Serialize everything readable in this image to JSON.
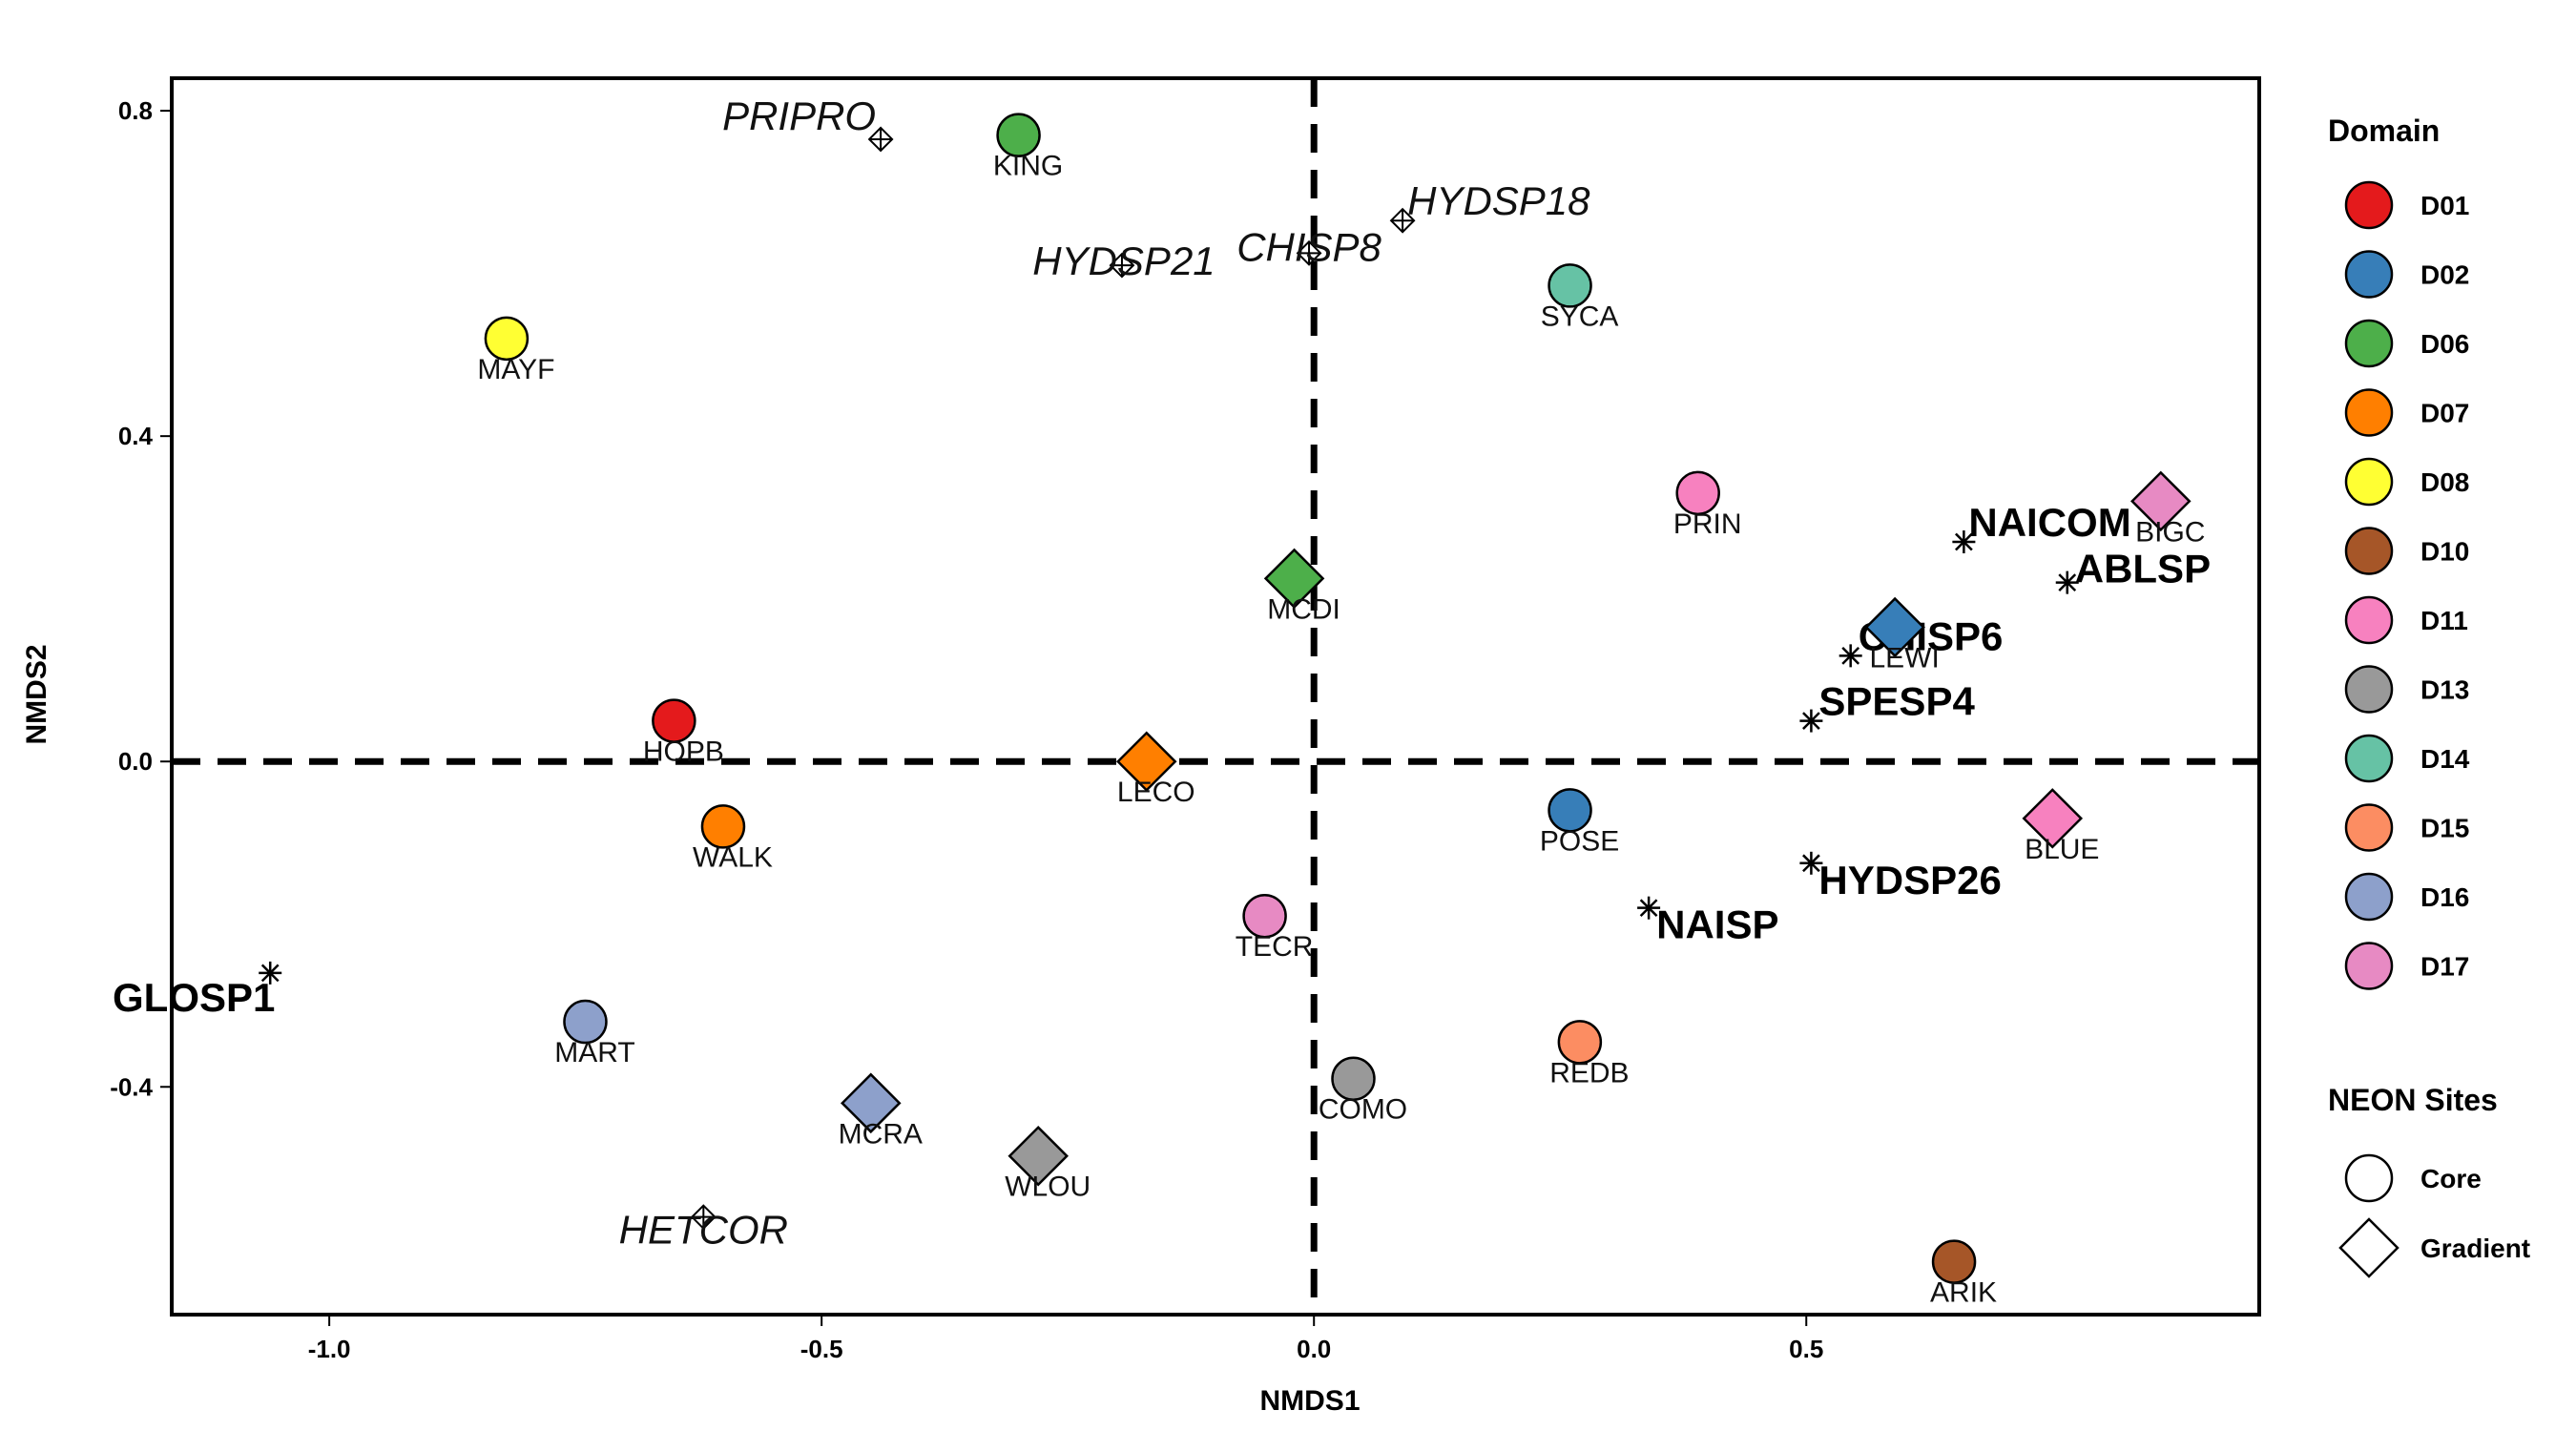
{
  "chart_data": {
    "type": "scatter",
    "xlabel": "NMDS1",
    "ylabel": "NMDS2",
    "xlim": [
      -1.16,
      0.96
    ],
    "ylim": [
      -0.68,
      0.84
    ],
    "xticks": [
      -1.0,
      -0.5,
      0.0,
      0.5
    ],
    "xtick_labels": [
      "-1.0",
      "-0.5",
      "0.0",
      "0.5"
    ],
    "yticks": [
      -0.4,
      0.0,
      0.4,
      0.8
    ],
    "ytick_labels": [
      "-0.4",
      "0.0",
      "0.4",
      "0.8"
    ],
    "grid": false,
    "reference_lines": [
      {
        "axis": "x",
        "value": 0,
        "style": "dashed"
      },
      {
        "axis": "y",
        "value": 0,
        "style": "dashed"
      }
    ],
    "legend_placement": "right",
    "domain_legend": {
      "title": "Domain",
      "entries": [
        {
          "label": "D01",
          "color": "#e41a1c"
        },
        {
          "label": "D02",
          "color": "#377eb8"
        },
        {
          "label": "D06",
          "color": "#4daf4a"
        },
        {
          "label": "D07",
          "color": "#ff7f00"
        },
        {
          "label": "D08",
          "color": "#ffff33"
        },
        {
          "label": "D10",
          "color": "#a65628"
        },
        {
          "label": "D11",
          "color": "#f781bf"
        },
        {
          "label": "D13",
          "color": "#999999"
        },
        {
          "label": "D14",
          "color": "#66c2a5"
        },
        {
          "label": "D15",
          "color": "#fc8d62"
        },
        {
          "label": "D16",
          "color": "#8da0cb"
        },
        {
          "label": "D17",
          "color": "#e78ac3"
        }
      ]
    },
    "site_type_legend": {
      "title": "NEON Sites",
      "entries": [
        {
          "label": "Core",
          "shape": "circle"
        },
        {
          "label": "Gradient",
          "shape": "diamond"
        }
      ]
    },
    "sites": [
      {
        "name": "KING",
        "x": -0.3,
        "y": 0.77,
        "domain": "D06",
        "type": "Core"
      },
      {
        "name": "MAYF",
        "x": -0.82,
        "y": 0.52,
        "domain": "D08",
        "type": "Core"
      },
      {
        "name": "SYCA",
        "x": 0.26,
        "y": 0.585,
        "domain": "D14",
        "type": "Core"
      },
      {
        "name": "PRIN",
        "x": 0.39,
        "y": 0.33,
        "domain": "D11",
        "type": "Core"
      },
      {
        "name": "BIGC",
        "x": 0.86,
        "y": 0.32,
        "domain": "D17",
        "type": "Gradient"
      },
      {
        "name": "MCDI",
        "x": -0.02,
        "y": 0.225,
        "domain": "D06",
        "type": "Gradient"
      },
      {
        "name": "LEWI",
        "x": 0.59,
        "y": 0.165,
        "domain": "D02",
        "type": "Gradient"
      },
      {
        "name": "HOPB",
        "x": -0.65,
        "y": 0.05,
        "domain": "D01",
        "type": "Core"
      },
      {
        "name": "LECO",
        "x": -0.17,
        "y": 0.0,
        "domain": "D07",
        "type": "Gradient"
      },
      {
        "name": "WALK",
        "x": -0.6,
        "y": -0.08,
        "domain": "D07",
        "type": "Core"
      },
      {
        "name": "POSE",
        "x": 0.26,
        "y": -0.06,
        "domain": "D02",
        "type": "Core"
      },
      {
        "name": "BLUE",
        "x": 0.75,
        "y": -0.07,
        "domain": "D11",
        "type": "Gradient"
      },
      {
        "name": "TECR",
        "x": -0.05,
        "y": -0.19,
        "domain": "D17",
        "type": "Core"
      },
      {
        "name": "MART",
        "x": -0.74,
        "y": -0.32,
        "domain": "D16",
        "type": "Core"
      },
      {
        "name": "REDB",
        "x": 0.27,
        "y": -0.345,
        "domain": "D15",
        "type": "Core"
      },
      {
        "name": "COMO",
        "x": 0.04,
        "y": -0.39,
        "domain": "D13",
        "type": "Core"
      },
      {
        "name": "MCRA",
        "x": -0.45,
        "y": -0.42,
        "domain": "D16",
        "type": "Gradient"
      },
      {
        "name": "WLOU",
        "x": -0.28,
        "y": -0.485,
        "domain": "D13",
        "type": "Gradient"
      },
      {
        "name": "ARIK",
        "x": 0.65,
        "y": -0.615,
        "domain": "D10",
        "type": "Core"
      }
    ],
    "species": [
      {
        "name": "PRIPRO",
        "x": -0.44,
        "y": 0.765,
        "style": "italic"
      },
      {
        "name": "HYDSP21",
        "x": -0.195,
        "y": 0.61,
        "style": "italic"
      },
      {
        "name": "CHISP8",
        "x": -0.005,
        "y": 0.625,
        "style": "italic"
      },
      {
        "name": "HYDSP18",
        "x": 0.09,
        "y": 0.665,
        "style": "italic"
      },
      {
        "name": "HETCOR",
        "x": -0.62,
        "y": -0.56,
        "style": "italic"
      },
      {
        "name": "NAICOM",
        "x": 0.66,
        "y": 0.27,
        "style": "bold"
      },
      {
        "name": "ABLSP",
        "x": 0.765,
        "y": 0.22,
        "style": "bold"
      },
      {
        "name": "CHISP6",
        "x": 0.545,
        "y": 0.13,
        "style": "bold"
      },
      {
        "name": "SPESP4",
        "x": 0.505,
        "y": 0.05,
        "style": "bold"
      },
      {
        "name": "HYDSP26",
        "x": 0.505,
        "y": -0.125,
        "style": "bold"
      },
      {
        "name": "NAISP",
        "x": 0.34,
        "y": -0.18,
        "style": "bold"
      },
      {
        "name": "GLOSP1",
        "x": -1.06,
        "y": -0.26,
        "style": "bold"
      }
    ]
  }
}
